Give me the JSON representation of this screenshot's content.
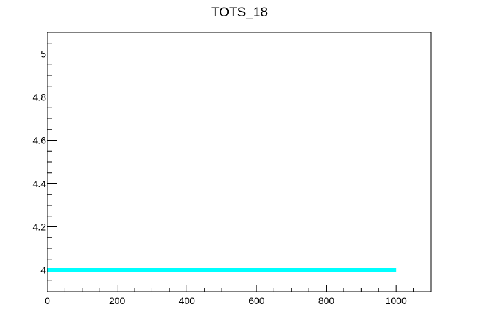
{
  "chart_data": {
    "type": "line",
    "title": "TOTS_18",
    "xlabel": "",
    "ylabel": "",
    "xlim": [
      0,
      1100
    ],
    "ylim": [
      3.9,
      5.1
    ],
    "x_ticks": [
      0,
      200,
      400,
      600,
      800,
      1000
    ],
    "x_tick_labels": [
      "0",
      "200",
      "400",
      "600",
      "800",
      "1000"
    ],
    "y_ticks": [
      4,
      4.2,
      4.4,
      4.6,
      4.8,
      5
    ],
    "y_tick_labels": [
      "4",
      "4.2",
      "4.4",
      "4.6",
      "4.8",
      "5"
    ],
    "grid": false,
    "series": [
      {
        "color": "#00ffff",
        "x": [
          0,
          1000
        ],
        "y": [
          4,
          4
        ]
      }
    ]
  }
}
